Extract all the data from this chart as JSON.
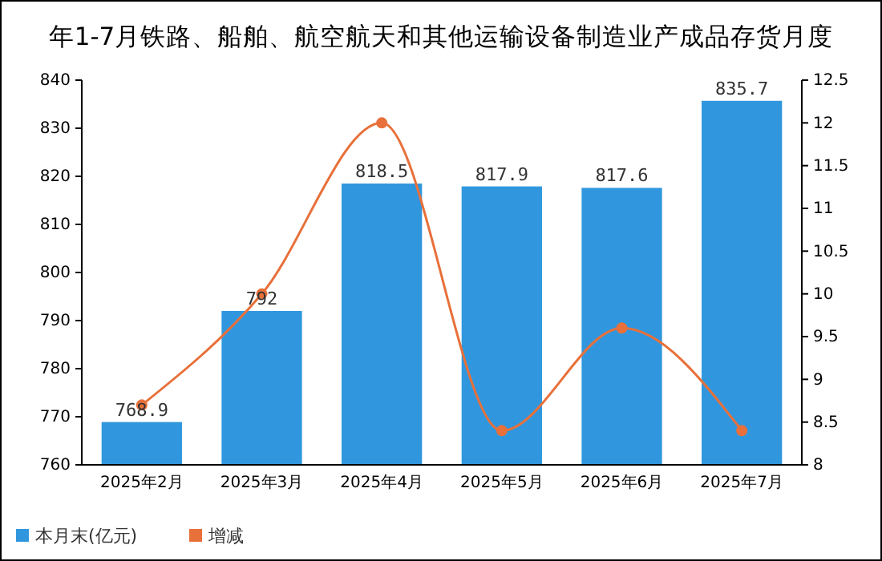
{
  "chart_data": {
    "type": "bar",
    "title": "年1-7月铁路、船舶、航空航天和其他运输设备制造业产成品存货月度",
    "categories": [
      "2025年2月",
      "2025年3月",
      "2025年4月",
      "2025年5月",
      "2025年6月",
      "2025年7月"
    ],
    "series": [
      {
        "name": "本月末(亿元)",
        "color": "#3097df",
        "values": [
          768.9,
          792,
          818.5,
          817.9,
          817.6,
          835.7
        ],
        "value_labels": [
          "768.9",
          "792",
          "818.5",
          "817.9",
          "817.6",
          "835.7"
        ]
      },
      {
        "name": "增减",
        "type": "line",
        "axis": "y2",
        "color": "#e8703a",
        "values": [
          8.7,
          10.0,
          12.0,
          8.4,
          9.6,
          8.4
        ]
      }
    ],
    "marker": "circle",
    "legend": "bottom left",
    "ylim": [
      760,
      840
    ],
    "yticks": [
      760,
      770,
      780,
      790,
      800,
      810,
      820,
      830,
      840
    ],
    "y2lim": [
      8,
      12.5
    ],
    "y2ticks": [
      8,
      {
        "value": 8.5,
        "label": "8.5"
      },
      9,
      {
        "value": 9.5,
        "label": "9.5"
      },
      10,
      {
        "value": 10.5,
        "label": "10.5"
      },
      11,
      {
        "value": 11.5,
        "label": "11.5"
      },
      12,
      {
        "value": 12.5,
        "label": "12.5"
      }
    ]
  }
}
